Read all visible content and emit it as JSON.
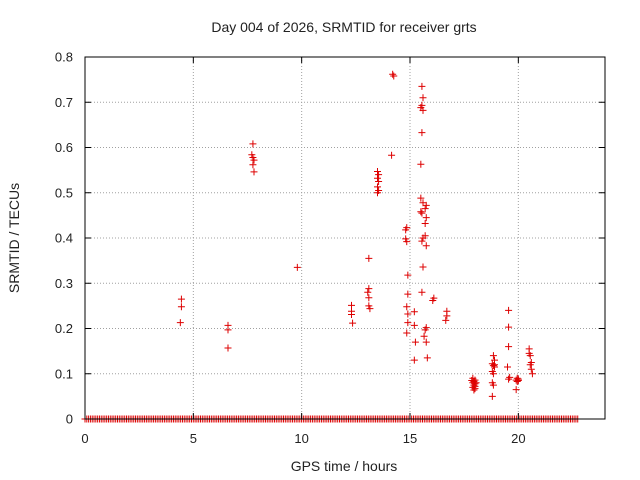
{
  "chart_data": {
    "type": "scatter",
    "title": "Day 004 of 2026, SRMTID for receiver grts",
    "xlabel": "GPS time / hours",
    "ylabel": "SRMTID / TECUs",
    "xlim": [
      0,
      24
    ],
    "ylim": [
      0,
      0.8
    ],
    "xticks": [
      0,
      5,
      10,
      15,
      20
    ],
    "yticks": [
      0,
      0.1,
      0.2,
      0.3,
      0.4,
      0.5,
      0.6,
      0.7,
      0.8
    ],
    "grid": true,
    "marker": "+",
    "series": [
      {
        "name": "SRMTID",
        "color": "#dd0000",
        "zero_baseline": {
          "x_start": 0.0,
          "x_end": 22.75,
          "x_step": 0.0833,
          "y": 0
        },
        "points": [
          [
            4.45,
            0.265
          ],
          [
            4.45,
            0.248
          ],
          [
            4.4,
            0.213
          ],
          [
            6.6,
            0.207
          ],
          [
            6.6,
            0.197
          ],
          [
            6.6,
            0.157
          ],
          [
            7.75,
            0.608
          ],
          [
            7.7,
            0.584
          ],
          [
            7.75,
            0.578
          ],
          [
            7.8,
            0.572
          ],
          [
            7.75,
            0.562
          ],
          [
            7.8,
            0.546
          ],
          [
            9.8,
            0.335
          ],
          [
            12.3,
            0.251
          ],
          [
            12.3,
            0.238
          ],
          [
            12.3,
            0.231
          ],
          [
            12.35,
            0.212
          ],
          [
            13.1,
            0.355
          ],
          [
            13.1,
            0.288
          ],
          [
            13.05,
            0.28
          ],
          [
            13.1,
            0.268
          ],
          [
            13.1,
            0.25
          ],
          [
            13.15,
            0.244
          ],
          [
            13.5,
            0.547
          ],
          [
            13.55,
            0.54
          ],
          [
            13.5,
            0.532
          ],
          [
            13.55,
            0.525
          ],
          [
            13.5,
            0.513
          ],
          [
            13.55,
            0.505
          ],
          [
            13.5,
            0.5
          ],
          [
            14.2,
            0.762
          ],
          [
            14.25,
            0.758
          ],
          [
            14.15,
            0.583
          ],
          [
            14.85,
            0.423
          ],
          [
            14.8,
            0.418
          ],
          [
            14.8,
            0.398
          ],
          [
            14.85,
            0.392
          ],
          [
            14.9,
            0.318
          ],
          [
            14.9,
            0.276
          ],
          [
            14.85,
            0.248
          ],
          [
            14.9,
            0.232
          ],
          [
            14.9,
            0.213
          ],
          [
            14.85,
            0.19
          ],
          [
            15.2,
            0.237
          ],
          [
            15.2,
            0.207
          ],
          [
            15.25,
            0.17
          ],
          [
            15.2,
            0.13
          ],
          [
            15.55,
            0.735
          ],
          [
            15.6,
            0.71
          ],
          [
            15.55,
            0.693
          ],
          [
            15.5,
            0.688
          ],
          [
            15.6,
            0.682
          ],
          [
            15.55,
            0.633
          ],
          [
            15.5,
            0.563
          ],
          [
            15.5,
            0.488
          ],
          [
            15.6,
            0.478
          ],
          [
            15.5,
            0.458
          ],
          [
            15.55,
            0.455
          ],
          [
            15.6,
            0.4
          ],
          [
            15.55,
            0.393
          ],
          [
            15.6,
            0.336
          ],
          [
            15.55,
            0.28
          ],
          [
            15.75,
            0.472
          ],
          [
            15.7,
            0.465
          ],
          [
            15.75,
            0.445
          ],
          [
            15.7,
            0.432
          ],
          [
            15.7,
            0.405
          ],
          [
            15.75,
            0.383
          ],
          [
            15.75,
            0.202
          ],
          [
            15.7,
            0.197
          ],
          [
            15.65,
            0.183
          ],
          [
            15.75,
            0.17
          ],
          [
            15.8,
            0.135
          ],
          [
            16.1,
            0.267
          ],
          [
            16.05,
            0.262
          ],
          [
            16.7,
            0.238
          ],
          [
            16.7,
            0.228
          ],
          [
            16.65,
            0.218
          ],
          [
            17.9,
            0.09
          ],
          [
            18.0,
            0.086
          ],
          [
            17.95,
            0.083
          ],
          [
            17.9,
            0.08
          ],
          [
            18.0,
            0.078
          ],
          [
            17.95,
            0.075
          ],
          [
            18.0,
            0.072
          ],
          [
            17.9,
            0.07
          ],
          [
            18.0,
            0.067
          ],
          [
            17.95,
            0.064
          ],
          [
            18.05,
            0.08
          ],
          [
            17.85,
            0.085
          ],
          [
            18.85,
            0.14
          ],
          [
            18.9,
            0.13
          ],
          [
            18.8,
            0.122
          ],
          [
            18.9,
            0.12
          ],
          [
            18.85,
            0.118
          ],
          [
            18.9,
            0.115
          ],
          [
            18.8,
            0.105
          ],
          [
            18.85,
            0.1
          ],
          [
            18.8,
            0.08
          ],
          [
            18.85,
            0.075
          ],
          [
            18.8,
            0.05
          ],
          [
            19.55,
            0.24
          ],
          [
            19.55,
            0.203
          ],
          [
            19.55,
            0.16
          ],
          [
            19.5,
            0.115
          ],
          [
            19.6,
            0.092
          ],
          [
            19.55,
            0.088
          ],
          [
            19.95,
            0.09
          ],
          [
            20.0,
            0.088
          ],
          [
            19.9,
            0.086
          ],
          [
            20.0,
            0.085
          ],
          [
            19.95,
            0.083
          ],
          [
            19.9,
            0.065
          ],
          [
            20.5,
            0.155
          ],
          [
            20.5,
            0.145
          ],
          [
            20.55,
            0.14
          ],
          [
            20.6,
            0.125
          ],
          [
            20.55,
            0.12
          ],
          [
            20.6,
            0.11
          ],
          [
            20.65,
            0.1
          ]
        ]
      }
    ]
  }
}
